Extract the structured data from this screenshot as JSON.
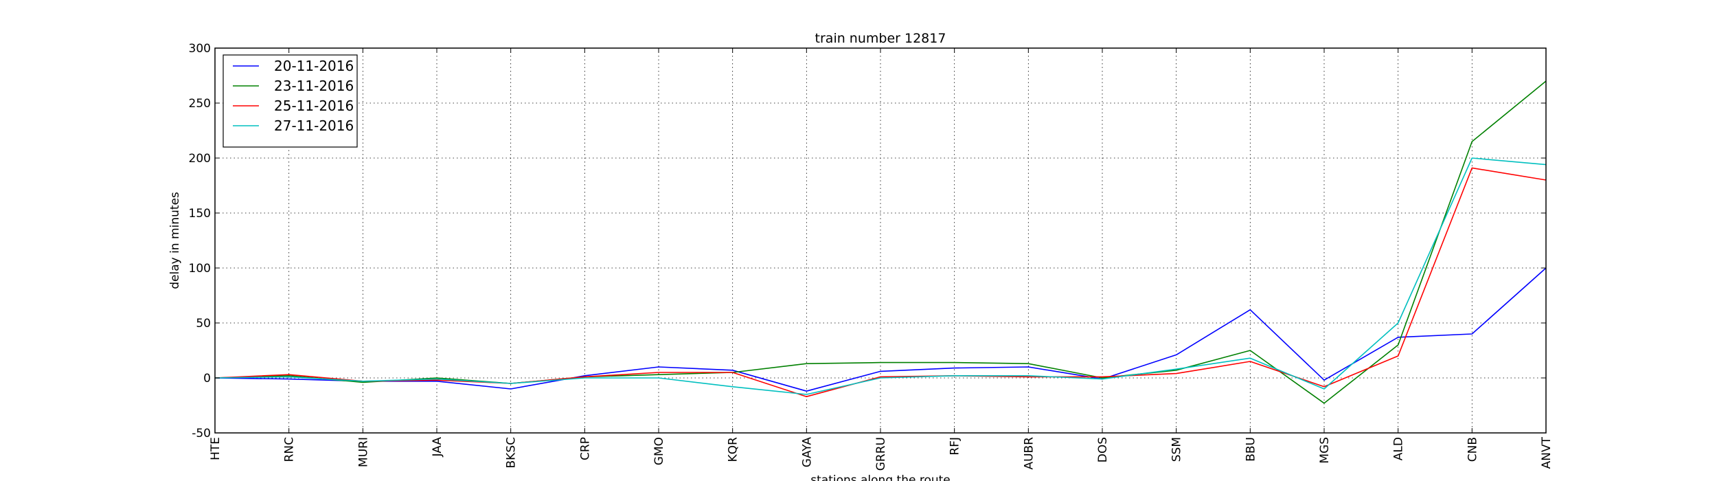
{
  "chart_data": {
    "type": "line",
    "title": "train number 12817",
    "xlabel": "stations along the route",
    "ylabel": "delay in minutes",
    "categories": [
      "HTE",
      "RNC",
      "MURI",
      "JAA",
      "BKSC",
      "CRP",
      "GMO",
      "KQR",
      "GAYA",
      "GRRU",
      "RFJ",
      "AUBR",
      "DOS",
      "SSM",
      "BBU",
      "MGS",
      "ALD",
      "CNB",
      "ANVT"
    ],
    "ylim": [
      -50,
      300
    ],
    "yticks": [
      -50,
      0,
      50,
      100,
      150,
      200,
      250,
      300
    ],
    "grid": true,
    "legend_position": "top-left",
    "series": [
      {
        "name": "20-11-2016",
        "color": "#0000ff",
        "values": [
          0,
          -1,
          -3,
          -3,
          -10,
          2,
          10,
          7,
          -12,
          6,
          9,
          10,
          -1,
          21,
          62,
          -2,
          37,
          40,
          100
        ]
      },
      {
        "name": "23-11-2016",
        "color": "#008000",
        "values": [
          0,
          2,
          -4,
          0,
          -5,
          1,
          3,
          5,
          13,
          14,
          14,
          13,
          0,
          7,
          25,
          -23,
          30,
          215,
          270
        ]
      },
      {
        "name": "25-11-2016",
        "color": "#ff0000",
        "values": [
          0,
          3,
          -3,
          -2,
          -5,
          1,
          5,
          5,
          -17,
          1,
          2,
          1,
          1,
          4,
          15,
          -8,
          20,
          191,
          180
        ]
      },
      {
        "name": "27-11-2016",
        "color": "#00bfbf",
        "values": [
          0,
          1,
          -3,
          -1,
          -5,
          0,
          0,
          -8,
          -15,
          0,
          2,
          2,
          -1,
          8,
          18,
          -10,
          50,
          200,
          194
        ]
      }
    ]
  }
}
